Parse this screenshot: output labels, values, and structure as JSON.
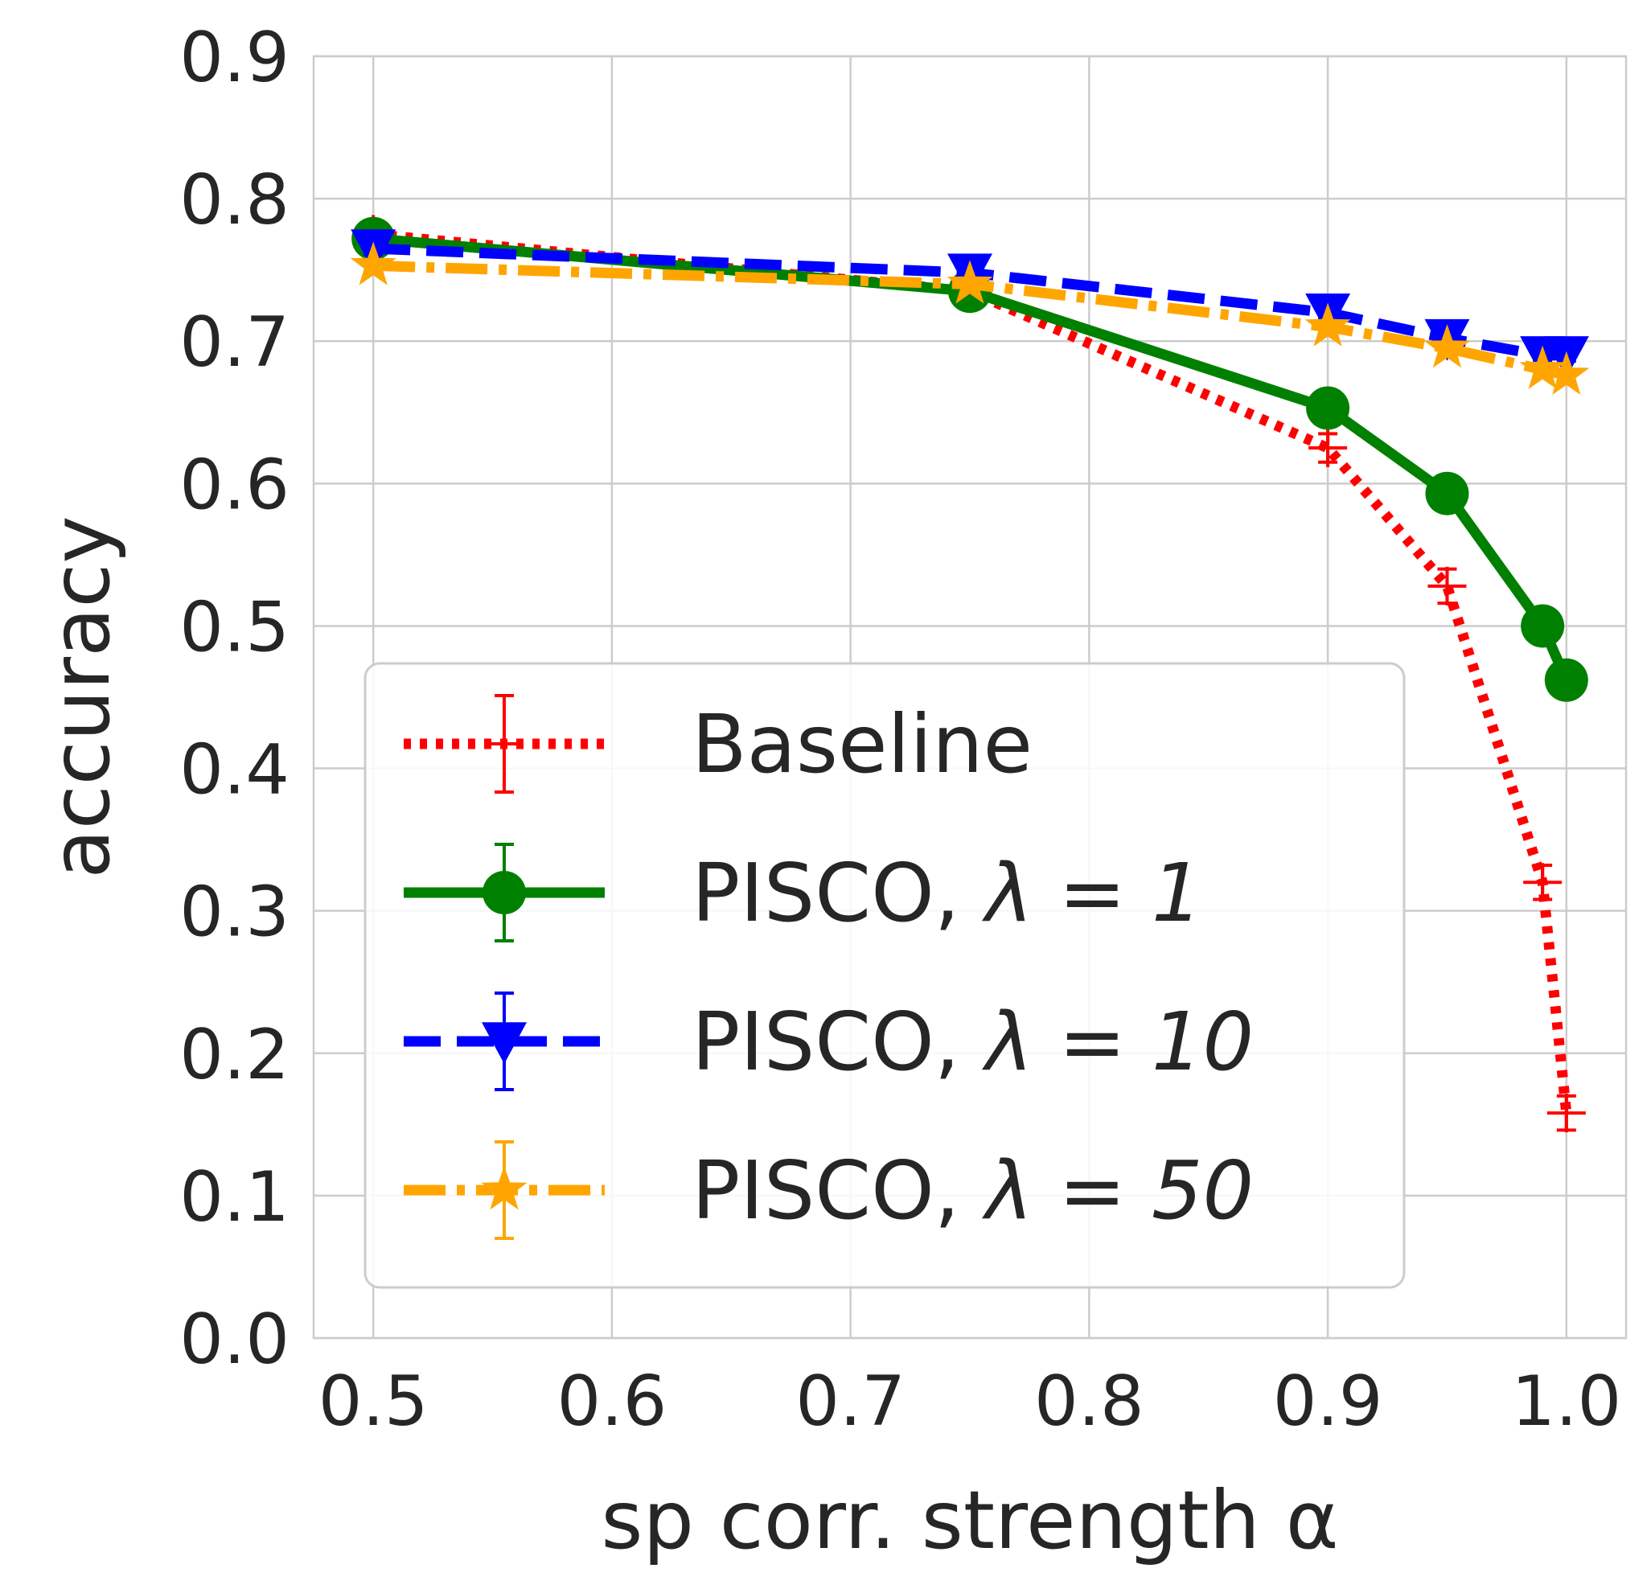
{
  "chart_data": {
    "type": "line",
    "title": "",
    "xlabel": "sp corr. strength α",
    "ylabel": "accuracy",
    "xlim": [
      0.475,
      1.025
    ],
    "ylim": [
      0.0,
      0.9
    ],
    "xticks": [
      0.5,
      0.6,
      0.7,
      0.8,
      0.9,
      1.0
    ],
    "xtick_labels": [
      "0.5",
      "0.6",
      "0.7",
      "0.8",
      "0.9",
      "1.0"
    ],
    "yticks": [
      0.0,
      0.1,
      0.2,
      0.3,
      0.4,
      0.5,
      0.6,
      0.7,
      0.8,
      0.9
    ],
    "ytick_labels": [
      "0.0",
      "0.1",
      "0.2",
      "0.3",
      "0.4",
      "0.5",
      "0.6",
      "0.7",
      "0.8",
      "0.9"
    ],
    "grid": true,
    "legend_position": "lower-left",
    "x": [
      0.5,
      0.75,
      0.9,
      0.95,
      0.99,
      1.0
    ],
    "series": [
      {
        "name": "Baseline",
        "legend_base": "Baseline",
        "legend_lambda": "",
        "color": "#ff0000",
        "linestyle": "dotted",
        "marker": "plus",
        "values": [
          0.775,
          0.735,
          0.625,
          0.528,
          0.32,
          0.158
        ],
        "errors": [
          0.005,
          0.005,
          0.01,
          0.012,
          0.012,
          0.012
        ]
      },
      {
        "name": "PISCO, λ = 1",
        "legend_base": "PISCO, ",
        "legend_lambda": "λ = 1",
        "color": "#008000",
        "linestyle": "solid",
        "marker": "circle",
        "values": [
          0.772,
          0.735,
          0.653,
          0.593,
          0.5,
          0.462
        ],
        "errors": [
          0.004,
          0.004,
          0.006,
          0.006,
          0.006,
          0.006
        ]
      },
      {
        "name": "PISCO, λ = 10",
        "legend_base": "PISCO, ",
        "legend_lambda": "λ = 10",
        "color": "#0000ff",
        "linestyle": "dashed",
        "marker": "triangle-down",
        "values": [
          0.765,
          0.748,
          0.72,
          0.702,
          0.69,
          0.69
        ],
        "errors": [
          0.004,
          0.004,
          0.004,
          0.004,
          0.004,
          0.004
        ]
      },
      {
        "name": "PISCO, λ = 50",
        "legend_base": "PISCO, ",
        "legend_lambda": "λ = 50",
        "color": "#ffa500",
        "linestyle": "dashdot",
        "marker": "star",
        "values": [
          0.753,
          0.74,
          0.71,
          0.695,
          0.68,
          0.676
        ],
        "errors": [
          0.004,
          0.004,
          0.004,
          0.004,
          0.004,
          0.004
        ]
      }
    ]
  }
}
